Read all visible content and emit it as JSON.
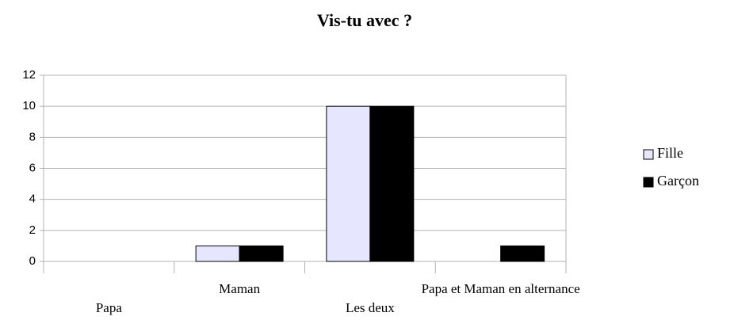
{
  "chart_data": {
    "type": "bar",
    "title": "Vis-tu avec ?",
    "categories": [
      "Papa",
      "Maman",
      "Les deux",
      "Papa et Maman en alternance"
    ],
    "series": [
      {
        "name": "Fille",
        "color": "#e6e6ff",
        "values": [
          0,
          1,
          10,
          0
        ]
      },
      {
        "name": "Garçon",
        "color": "#000000",
        "values": [
          0,
          1,
          10,
          1
        ]
      }
    ],
    "ylim": [
      0,
      12
    ],
    "yticks": [
      0,
      2,
      4,
      6,
      8,
      10,
      12
    ],
    "grid": true,
    "legend": "right"
  }
}
